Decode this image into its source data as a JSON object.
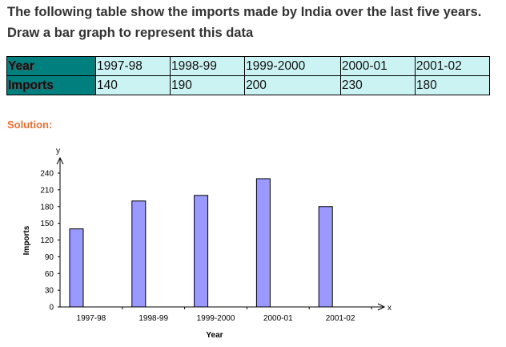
{
  "question": {
    "line1": "The following table show the imports made by India over the last five years.",
    "line2": "Draw a bar graph to represent this data"
  },
  "table": {
    "rows": [
      {
        "header": "Year",
        "cells": [
          "1997-98",
          "1998-99",
          "1999-2000",
          "2000-01",
          "2001-02"
        ]
      },
      {
        "header": "Imports",
        "cells": [
          "140",
          "190",
          "200",
          "230",
          "180"
        ]
      }
    ],
    "header_color": "#007f7f",
    "cell_color": "#ccf3f3"
  },
  "solution_label": "Solution:",
  "chart_data": {
    "type": "bar",
    "categories": [
      "1997-98",
      "1998-99",
      "1999-2000",
      "2000-01",
      "2001-02"
    ],
    "values": [
      140,
      190,
      200,
      230,
      180
    ],
    "xlabel": "Year",
    "ylabel": "Imports",
    "x_axis_symbol": "x",
    "y_axis_symbol": "y",
    "ylim": [
      0,
      240
    ],
    "yticks": [
      0,
      30,
      60,
      90,
      120,
      150,
      180,
      210,
      240
    ],
    "grid": false,
    "bar_color": "#9999ff"
  }
}
